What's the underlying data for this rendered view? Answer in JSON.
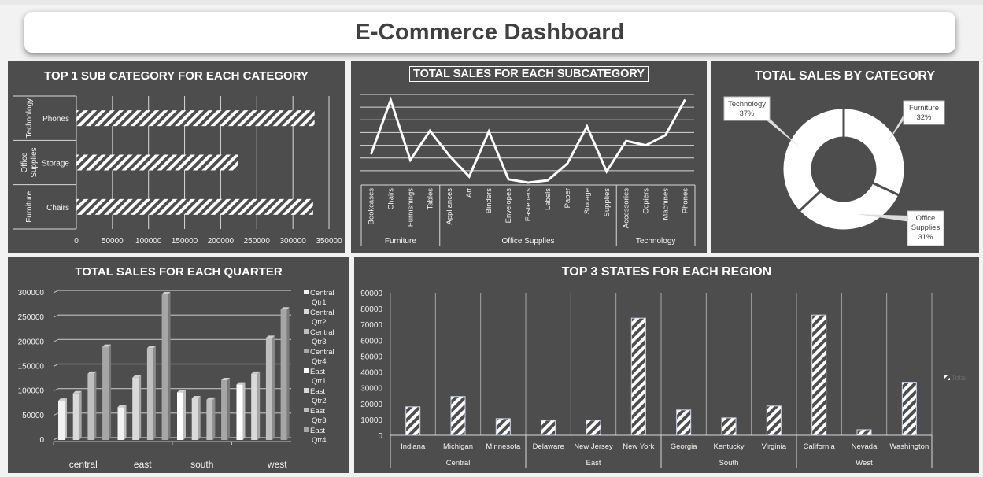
{
  "header": {
    "title": "E-Commerce Dashboard"
  },
  "colors": {
    "panel_bg": "#4d4d4d",
    "page_bg": "#f2f2f2",
    "foreground": "#ffffff",
    "title_text": "#404040"
  },
  "panels": {
    "top_subcategory": {
      "title": "TOP 1 SUB CATEGORY FOR EACH CATEGORY"
    },
    "subcategory_sales": {
      "title": "TOTAL SALES FOR EACH SUBCATEGORY"
    },
    "category_sales": {
      "title": "TOTAL SALES BY CATEGORY"
    },
    "quarter_sales": {
      "title": "TOTAL SALES FOR EACH QUARTER"
    },
    "region_states": {
      "title": "TOP 3 STATES FOR EACH REGION"
    }
  },
  "chart_data": [
    {
      "id": "top_subcategory",
      "type": "bar",
      "orientation": "horizontal",
      "title": "TOP 1 SUB CATEGORY FOR EACH CATEGORY",
      "groups": [
        "Technology",
        "Office Supplies",
        "Furniture"
      ],
      "categories": [
        "Phones",
        "Storage",
        "Chairs"
      ],
      "values": [
        330000,
        224000,
        328000
      ],
      "xticks": [
        "0",
        "50000",
        "100000",
        "150000",
        "200000",
        "250000",
        "300000",
        "350000"
      ],
      "xlim": [
        0,
        350000
      ],
      "grid": true,
      "fill": "diagonal-hatch"
    },
    {
      "id": "subcategory_sales",
      "type": "line",
      "title": "TOTAL SALES FOR EACH SUBCATEGORY",
      "groups": [
        {
          "name": "Furniture",
          "categories": [
            "Bookcases",
            "Chairs",
            "Furnishings",
            "Tables"
          ]
        },
        {
          "name": "Office Supplies",
          "categories": [
            "Appliances",
            "Art",
            "Binders",
            "Envelopes",
            "Fasteners",
            "Labels",
            "Paper",
            "Storage",
            "Supplies"
          ]
        },
        {
          "name": "Technology",
          "categories": [
            "Accessories",
            "Copiers",
            "Machines",
            "Phones"
          ]
        }
      ],
      "categories": [
        "Bookcases",
        "Chairs",
        "Furnishings",
        "Tables",
        "Appliances",
        "Art",
        "Binders",
        "Envelopes",
        "Fasteners",
        "Labels",
        "Paper",
        "Storage",
        "Supplies",
        "Accessories",
        "Copiers",
        "Machines",
        "Phones"
      ],
      "values": [
        115000,
        328000,
        92000,
        207000,
        108000,
        27000,
        204000,
        16000,
        3000,
        12000,
        78000,
        224000,
        47000,
        167000,
        150000,
        190000,
        330000
      ],
      "ylim": [
        0,
        350000
      ],
      "yticks_visible": false,
      "grid": true
    },
    {
      "id": "category_sales",
      "type": "pie",
      "variant": "donut",
      "title": "TOTAL SALES BY CATEGORY",
      "categories": [
        "Furniture",
        "Office Supplies",
        "Technology"
      ],
      "values": [
        32,
        31,
        37
      ],
      "labels": [
        "Furniture\n32%",
        "Office\nSupplies\n31%",
        "Technology\n37%"
      ]
    },
    {
      "id": "quarter_sales",
      "type": "bar",
      "title": "TOTAL SALES FOR EACH QUARTER",
      "categories": [
        "central",
        "east",
        "south",
        "west"
      ],
      "series": [
        {
          "name": "Qtr1",
          "values": [
            80000,
            67000,
            97000,
            113000
          ]
        },
        {
          "name": "Qtr2",
          "values": [
            95000,
            127000,
            85000,
            135000
          ]
        },
        {
          "name": "Qtr3",
          "values": [
            135000,
            187000,
            82000,
            208000
          ]
        },
        {
          "name": "Qtr4",
          "values": [
            190000,
            297000,
            122000,
            266000
          ]
        }
      ],
      "legend": [
        "Central Qtr1",
        "Central Qtr2",
        "Central Qtr3",
        "Central Qtr4",
        "East Qtr1",
        "East Qtr2",
        "East Qtr3",
        "East Qtr4"
      ],
      "legend_position": "right",
      "yticks": [
        "300000",
        "250000",
        "200000",
        "150000",
        "100000",
        "50000",
        "0"
      ],
      "ylim": [
        0,
        300000
      ],
      "grid": true,
      "style": "3d-column"
    },
    {
      "id": "region_states",
      "type": "bar",
      "title": "TOP 3 STATES FOR EACH REGION",
      "groups": [
        {
          "name": "Central",
          "categories": [
            "Indiana",
            "Michigan",
            "Minnesota"
          ]
        },
        {
          "name": "East",
          "categories": [
            "Delaware",
            "New Jersey",
            "New York"
          ]
        },
        {
          "name": "South",
          "categories": [
            "Georgia",
            "Kentucky",
            "Virginia"
          ]
        },
        {
          "name": "West",
          "categories": [
            "California",
            "Nevada",
            "Washington"
          ]
        }
      ],
      "categories": [
        "Indiana",
        "Michigan",
        "Minnesota",
        "Delaware",
        "New Jersey",
        "New York",
        "Georgia",
        "Kentucky",
        "Virginia",
        "California",
        "Nevada",
        "Washington"
      ],
      "values": [
        18000,
        24500,
        10500,
        9500,
        9500,
        74000,
        16000,
        11000,
        18500,
        76000,
        3500,
        33500
      ],
      "yticks": [
        "90000",
        "80000",
        "70000",
        "60000",
        "50000",
        "40000",
        "30000",
        "20000",
        "10000",
        "0"
      ],
      "ylim": [
        0,
        90000
      ],
      "legend": [
        "Total"
      ],
      "legend_position": "right",
      "fill": "diagonal-hatch"
    }
  ]
}
